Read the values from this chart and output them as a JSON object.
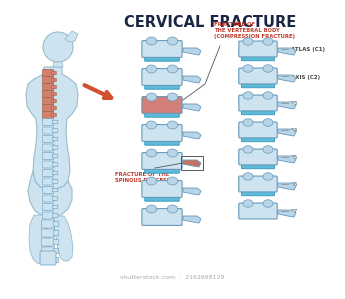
{
  "title": "CERVICAL FRACTURE",
  "title_color": "#1a2744",
  "title_fontsize": 10.5,
  "bg_color": "#ffffff",
  "label1_line1": "FRACTURE OF",
  "label1_line2": "THE VERTEBRAL BODY",
  "label1_line3": "(COMPRESSION FRACTURE)",
  "label2_line1": "FRACTURE OF THE",
  "label2_line2": "SPINOUS PROCESS",
  "label_color": "#c0392b",
  "vertebrae_labels": [
    "ATLAS (C1)",
    "AXIS (C2)",
    "C3",
    "C4",
    "C5",
    "C6",
    "C7"
  ],
  "vertebrae_label_color": "#444444",
  "body_color": "#cde4f0",
  "body_color2": "#b8d5e8",
  "body_outline": "#6699bb",
  "spine_highlight": "#d4806a",
  "disc_color": "#5bbbd8",
  "fracture_body_color": "#d4807a",
  "fracture_spinous_color": "#c87060",
  "arrow_color": "#d05030",
  "silhouette_color": "#cde4f0",
  "silhouette_outline": "#99bbcc",
  "shutterstock_text": "shutterstock.com  ·  2162698129",
  "shutterstock_color": "#aaaaaa"
}
